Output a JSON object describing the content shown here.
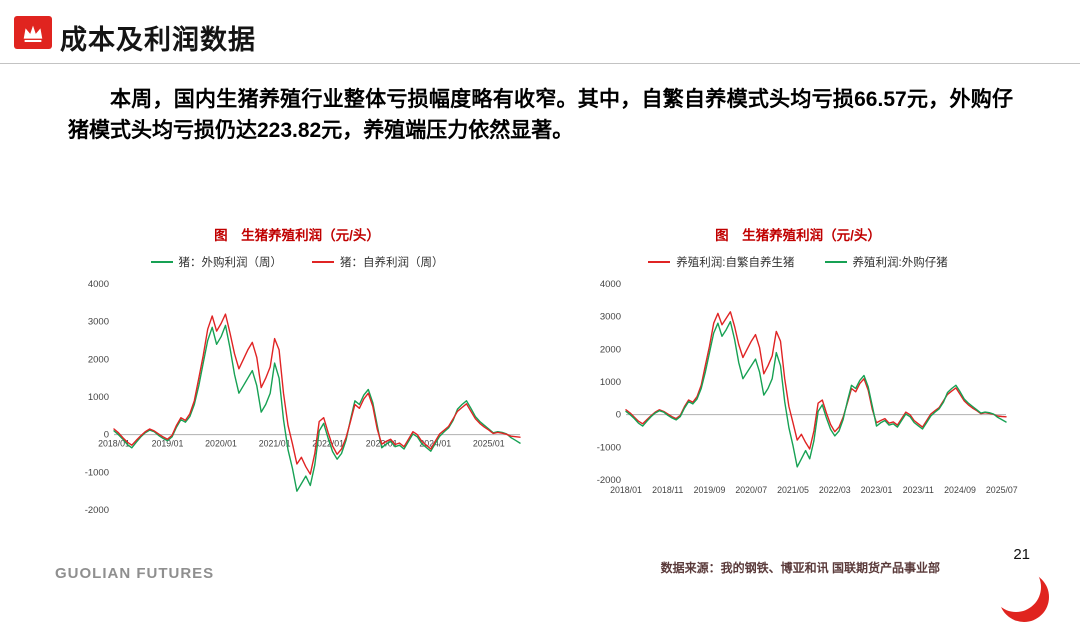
{
  "header": {
    "title": "成本及利润数据",
    "icon": "crown-icon"
  },
  "intro": {
    "text": "本周，国内生猪养殖行业整体亏损幅度略有收窄。其中，自繁自养模式头均亏损66.57元，外购仔猪模式头均亏损仍达223.82元，养殖端压力依然显著。"
  },
  "colors": {
    "accent_red": "#e0241f",
    "series_red": "#e02424",
    "series_green": "#17a154",
    "chart_title_red": "#c00000"
  },
  "chart_data": [
    {
      "type": "line",
      "title": "图　生猪养殖利润（元/头）",
      "ylabel": "",
      "ylim": [
        -2000,
        4000
      ],
      "y_ticks": [
        4000,
        3000,
        2000,
        1000,
        0,
        -1000,
        -2000
      ],
      "x_label_position": "zero",
      "legend_position": "top",
      "x_tick_labels": [
        "2018/01",
        "2019/01",
        "2020/01",
        "2021/01",
        "2022/01",
        "2023/01",
        "2024/01",
        "2025/01"
      ],
      "x_tick_idx": [
        0,
        12,
        24,
        36,
        48,
        60,
        72,
        84
      ],
      "series": [
        {
          "name": "猪：外购利润（周）",
          "color": "#17a154",
          "values": [
            100,
            0,
            -120,
            -260,
            -350,
            -200,
            -60,
            50,
            120,
            80,
            -20,
            -100,
            -160,
            -60,
            200,
            400,
            330,
            480,
            800,
            1300,
            1900,
            2500,
            2850,
            2400,
            2600,
            2900,
            2300,
            1600,
            1100,
            1300,
            1500,
            1700,
            1300,
            600,
            800,
            1100,
            1900,
            1500,
            400,
            -400,
            -900,
            -1500,
            -1300,
            -1100,
            -1350,
            -800,
            100,
            300,
            -100,
            -450,
            -650,
            -500,
            -150,
            400,
            900,
            800,
            1050,
            1200,
            850,
            250,
            -350,
            -250,
            -180,
            -320,
            -280,
            -380,
            -180,
            20,
            -60,
            -240,
            -340,
            -440,
            -240,
            -40,
            80,
            180,
            380,
            680,
            800,
            900,
            700,
            480,
            350,
            250,
            150,
            50,
            80,
            60,
            20,
            -80,
            -150,
            -224
          ]
        },
        {
          "name": "猪：自养利润（周）",
          "color": "#e02424",
          "values": [
            150,
            50,
            -80,
            -200,
            -280,
            -150,
            -30,
            80,
            150,
            100,
            20,
            -60,
            -120,
            -20,
            250,
            450,
            380,
            550,
            900,
            1500,
            2100,
            2800,
            3150,
            2750,
            2950,
            3200,
            2700,
            2150,
            1750,
            2000,
            2250,
            2450,
            2050,
            1250,
            1500,
            1800,
            2550,
            2250,
            1100,
            250,
            -250,
            -780,
            -600,
            -850,
            -1050,
            -500,
            350,
            450,
            50,
            -300,
            -520,
            -380,
            -80,
            350,
            800,
            700,
            950,
            1100,
            750,
            150,
            -250,
            -180,
            -120,
            -260,
            -220,
            -320,
            -120,
            80,
            0,
            -180,
            -280,
            -380,
            -180,
            20,
            120,
            220,
            420,
            620,
            720,
            820,
            620,
            420,
            300,
            200,
            120,
            30,
            60,
            40,
            10,
            -40,
            -55,
            -66
          ]
        }
      ]
    },
    {
      "type": "line",
      "title": "图　生猪养殖利润（元/头）",
      "ylabel": "",
      "ylim": [
        -2000,
        4000
      ],
      "y_ticks": [
        4000,
        3000,
        2000,
        1000,
        0,
        -1000,
        -2000
      ],
      "x_label_position": "bottom",
      "legend_position": "top",
      "x_tick_labels": [
        "2018/01",
        "2018/11",
        "2019/09",
        "2020/07",
        "2021/05",
        "2022/03",
        "2023/01",
        "2023/11",
        "2024/09",
        "2025/07"
      ],
      "x_tick_idx": [
        0,
        10,
        20,
        30,
        40,
        50,
        60,
        70,
        80,
        90
      ],
      "series": [
        {
          "name": "养殖利润:自繁自养生猪",
          "color": "#e02424",
          "values": [
            150,
            50,
            -80,
            -200,
            -280,
            -150,
            -30,
            80,
            150,
            100,
            20,
            -60,
            -120,
            -20,
            250,
            450,
            380,
            550,
            900,
            1500,
            2100,
            2800,
            3100,
            2750,
            2950,
            3150,
            2700,
            2150,
            1750,
            2000,
            2250,
            2450,
            2050,
            1250,
            1500,
            1800,
            2550,
            2250,
            1100,
            250,
            -250,
            -780,
            -600,
            -850,
            -1050,
            -500,
            350,
            450,
            50,
            -300,
            -520,
            -380,
            -80,
            350,
            800,
            700,
            950,
            1100,
            750,
            150,
            -250,
            -180,
            -120,
            -260,
            -220,
            -320,
            -120,
            80,
            0,
            -180,
            -280,
            -380,
            -180,
            20,
            120,
            220,
            420,
            620,
            720,
            820,
            620,
            420,
            300,
            200,
            120,
            30,
            60,
            40,
            10,
            -40,
            -55,
            -66
          ]
        },
        {
          "name": "养殖利润:外购仔猪",
          "color": "#17a154",
          "values": [
            100,
            0,
            -120,
            -260,
            -350,
            -200,
            -60,
            50,
            120,
            80,
            -20,
            -100,
            -160,
            -60,
            200,
            400,
            330,
            480,
            800,
            1300,
            1900,
            2500,
            2800,
            2400,
            2600,
            2850,
            2300,
            1600,
            1100,
            1300,
            1500,
            1700,
            1300,
            600,
            800,
            1100,
            1900,
            1500,
            400,
            -400,
            -950,
            -1600,
            -1350,
            -1100,
            -1350,
            -800,
            100,
            300,
            -100,
            -450,
            -650,
            -500,
            -150,
            400,
            900,
            800,
            1050,
            1200,
            850,
            250,
            -350,
            -250,
            -180,
            -320,
            -280,
            -380,
            -180,
            20,
            -60,
            -240,
            -340,
            -440,
            -240,
            -40,
            80,
            180,
            380,
            680,
            800,
            900,
            700,
            480,
            350,
            250,
            150,
            50,
            80,
            60,
            20,
            -80,
            -150,
            -224
          ]
        }
      ]
    }
  ],
  "footer": {
    "logo": "GUOLIAN FUTURES",
    "source": "数据来源：我的钢铁、博亚和讯 国联期货产品事业部",
    "page": "21"
  }
}
